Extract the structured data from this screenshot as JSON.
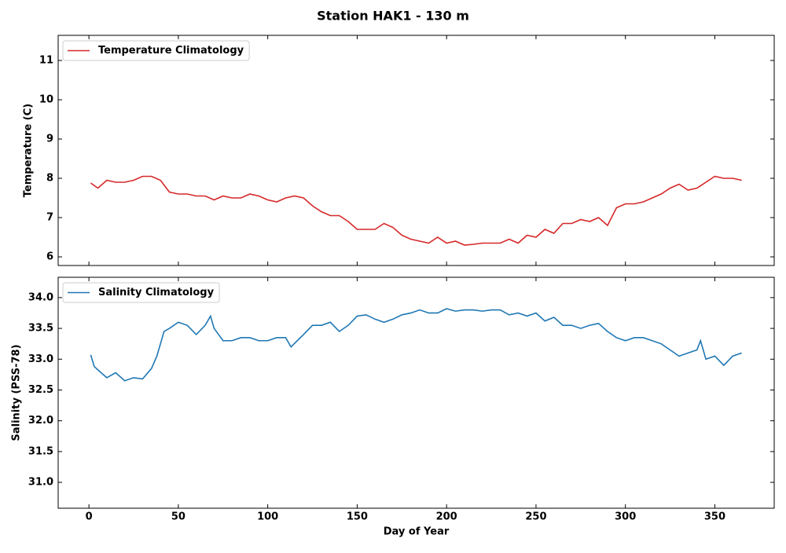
{
  "title": "Station HAK1 - 130 m",
  "chart_data": [
    {
      "type": "line",
      "ylabel": "Temperature (C)",
      "x": [
        1,
        5,
        10,
        15,
        20,
        25,
        30,
        35,
        40,
        45,
        50,
        55,
        60,
        65,
        70,
        75,
        80,
        85,
        90,
        95,
        100,
        105,
        110,
        115,
        120,
        125,
        130,
        135,
        140,
        145,
        150,
        155,
        160,
        165,
        170,
        175,
        180,
        185,
        190,
        195,
        200,
        205,
        210,
        215,
        220,
        225,
        230,
        235,
        240,
        245,
        250,
        255,
        260,
        265,
        270,
        275,
        280,
        285,
        290,
        295,
        300,
        305,
        310,
        315,
        320,
        325,
        330,
        335,
        340,
        345,
        350,
        355,
        360,
        365
      ],
      "series": [
        {
          "name": "Temperature Climatology",
          "color": "#d62728",
          "values": [
            7.88,
            7.75,
            7.95,
            7.9,
            7.9,
            7.95,
            8.05,
            8.05,
            7.95,
            7.65,
            7.6,
            7.6,
            7.55,
            7.55,
            7.45,
            7.55,
            7.5,
            7.5,
            7.6,
            7.55,
            7.45,
            7.4,
            7.5,
            7.55,
            7.5,
            7.3,
            7.15,
            7.05,
            7.05,
            6.9,
            6.7,
            6.7,
            6.7,
            6.85,
            6.75,
            6.55,
            6.45,
            6.4,
            6.35,
            6.5,
            6.35,
            6.4,
            6.3,
            6.32,
            6.35,
            6.35,
            6.35,
            6.45,
            6.35,
            6.55,
            6.5,
            6.7,
            6.6,
            6.85,
            6.85,
            6.95,
            6.9,
            7.0,
            6.8,
            7.25,
            7.35,
            7.35,
            7.4,
            7.5,
            7.6,
            7.75,
            7.85,
            7.7,
            7.75,
            7.9,
            8.05,
            8.0,
            8.0,
            7.95
          ]
        }
      ],
      "xlim": [
        -17.2,
        383.2
      ],
      "xticks": [
        0,
        50,
        100,
        150,
        200,
        250,
        300,
        350
      ],
      "ylim": [
        5.78,
        11.64
      ],
      "yticks": [
        6,
        7,
        8,
        9,
        10,
        11
      ],
      "legend": "upper left"
    },
    {
      "type": "line",
      "ylabel": "Salinity (PSS-78)",
      "xlabel": "Day of Year",
      "x": [
        1,
        3,
        8,
        10,
        15,
        20,
        25,
        30,
        35,
        38,
        42,
        45,
        50,
        55,
        60,
        65,
        68,
        70,
        75,
        80,
        85,
        90,
        95,
        100,
        105,
        110,
        113,
        120,
        125,
        130,
        135,
        140,
        145,
        150,
        155,
        160,
        165,
        170,
        175,
        180,
        185,
        190,
        195,
        200,
        205,
        210,
        215,
        220,
        225,
        230,
        235,
        240,
        245,
        250,
        255,
        260,
        265,
        270,
        275,
        280,
        285,
        290,
        295,
        300,
        305,
        310,
        315,
        320,
        325,
        330,
        335,
        340,
        342,
        345,
        350,
        355,
        360,
        365
      ],
      "series": [
        {
          "name": "Salinity Climatology",
          "color": "#1f77b4",
          "values": [
            33.07,
            32.88,
            32.75,
            32.7,
            32.78,
            32.65,
            32.7,
            32.68,
            32.85,
            33.05,
            33.45,
            33.5,
            33.6,
            33.55,
            33.4,
            33.55,
            33.7,
            33.5,
            33.3,
            33.3,
            33.35,
            33.35,
            33.3,
            33.3,
            33.35,
            33.35,
            33.2,
            33.4,
            33.55,
            33.55,
            33.6,
            33.45,
            33.55,
            33.7,
            33.72,
            33.65,
            33.6,
            33.65,
            33.72,
            33.75,
            33.8,
            33.75,
            33.75,
            33.82,
            33.78,
            33.8,
            33.8,
            33.78,
            33.8,
            33.8,
            33.72,
            33.75,
            33.7,
            33.75,
            33.62,
            33.68,
            33.55,
            33.55,
            33.5,
            33.55,
            33.58,
            33.45,
            33.35,
            33.3,
            33.35,
            33.35,
            33.3,
            33.25,
            33.15,
            33.05,
            33.1,
            33.15,
            33.3,
            33.0,
            33.05,
            32.9,
            33.05,
            33.1
          ]
        }
      ],
      "xlim": [
        -17.2,
        383.2
      ],
      "xticks": [
        0,
        50,
        100,
        150,
        200,
        250,
        300,
        350
      ],
      "ylim": [
        30.58,
        34.33
      ],
      "yticks": [
        {
          "value": 31,
          "label": "31.0"
        },
        {
          "value": 31.5,
          "label": "31.5"
        },
        {
          "value": 32,
          "label": "32.0"
        },
        {
          "value": 32.5,
          "label": "32.5"
        },
        {
          "value": 33,
          "label": "33.0"
        },
        {
          "value": 33.5,
          "label": "33.5"
        },
        {
          "value": 34,
          "label": "34.0"
        }
      ],
      "legend": "upper left"
    }
  ]
}
